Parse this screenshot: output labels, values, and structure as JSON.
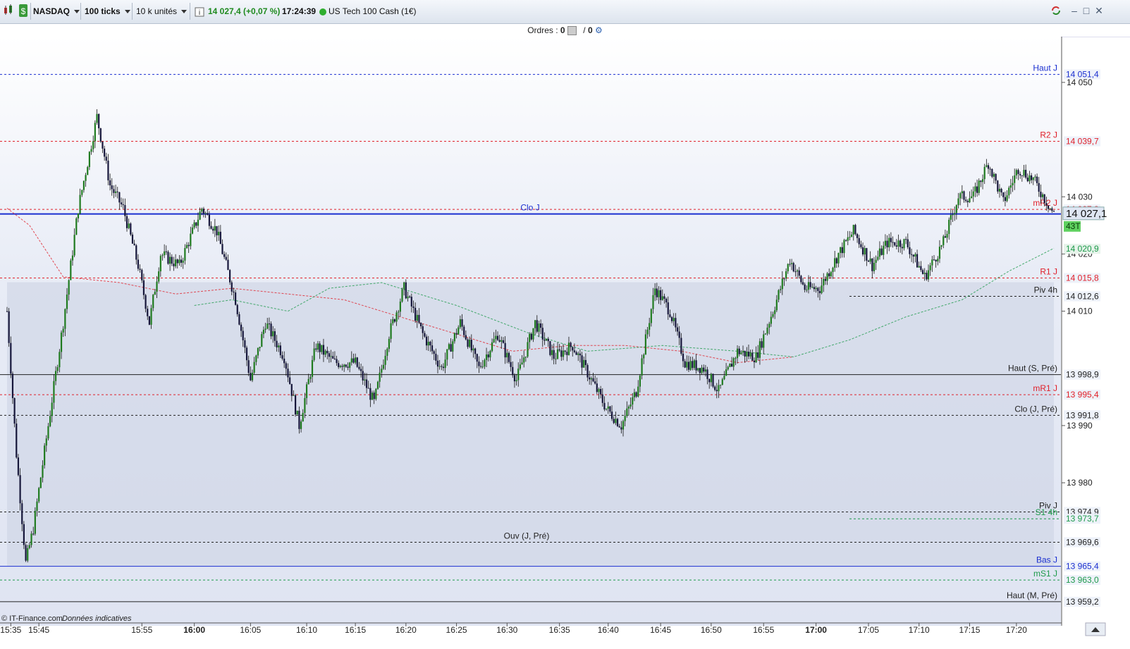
{
  "toolbar": {
    "market": "NASDAQ",
    "ticks": "100 ticks",
    "units": "10 k unités",
    "price_change": "14 027,4 (+0,07 %)",
    "time": "17:24:39",
    "instrument": "US Tech 100 Cash (1€)"
  },
  "orders": {
    "label": "Ordres :",
    "count_a": "0",
    "sep": "/",
    "count_b": "0"
  },
  "footer": {
    "source": "© IT-Finance.com",
    "disclaimer": "Données indicatives"
  },
  "colors": {
    "up": "#1f7a1f",
    "down": "#16163a",
    "red_line": "#e0202a",
    "blue_line": "#1a2fd0",
    "green_line": "#1d9a4a"
  },
  "chart_data": {
    "type": "candlestick",
    "ylim": [
      13955,
      14058
    ],
    "yticks": [
      {
        "value": 14050,
        "label": "14 050"
      },
      {
        "value": 14030,
        "label": "14 030"
      },
      {
        "value": 14020,
        "label": "14 020"
      },
      {
        "value": 14010,
        "label": "14 010"
      },
      {
        "value": 13990,
        "label": "13 990"
      },
      {
        "value": 13980,
        "label": "13 980"
      }
    ],
    "xticks": [
      {
        "label": "15:35",
        "bold": false
      },
      {
        "label": "15:45",
        "bold": false
      },
      {
        "label": "15:55",
        "bold": false
      },
      {
        "label": "16:00",
        "bold": true
      },
      {
        "label": "16:05",
        "bold": false
      },
      {
        "label": "16:10",
        "bold": false
      },
      {
        "label": "16:15",
        "bold": false
      },
      {
        "label": "16:20",
        "bold": false
      },
      {
        "label": "16:25",
        "bold": false
      },
      {
        "label": "16:30",
        "bold": false
      },
      {
        "label": "16:35",
        "bold": false
      },
      {
        "label": "16:40",
        "bold": false
      },
      {
        "label": "16:45",
        "bold": false
      },
      {
        "label": "16:50",
        "bold": false
      },
      {
        "label": "16:55",
        "bold": false
      },
      {
        "label": "17:00",
        "bold": true
      },
      {
        "label": "17:05",
        "bold": false
      },
      {
        "label": "17:10",
        "bold": false
      },
      {
        "label": "17:15",
        "bold": false
      },
      {
        "label": "17:20",
        "bold": false
      }
    ],
    "xtick_index": [
      2,
      17,
      72,
      100,
      130,
      160,
      186,
      213,
      240,
      267,
      295,
      321,
      349,
      376,
      404,
      432,
      460,
      487,
      514,
      539
    ],
    "candle_count": 560,
    "price_path": [
      {
        "i": 0,
        "p": 14010
      },
      {
        "i": 5,
        "p": 13985
      },
      {
        "i": 10,
        "p": 13966
      },
      {
        "i": 14,
        "p": 13972
      },
      {
        "i": 22,
        "p": 13990
      },
      {
        "i": 30,
        "p": 14008
      },
      {
        "i": 38,
        "p": 14028
      },
      {
        "i": 48,
        "p": 14044
      },
      {
        "i": 55,
        "p": 14032
      },
      {
        "i": 62,
        "p": 14028
      },
      {
        "i": 70,
        "p": 14018
      },
      {
        "i": 76,
        "p": 14008
      },
      {
        "i": 82,
        "p": 14020
      },
      {
        "i": 92,
        "p": 14018
      },
      {
        "i": 104,
        "p": 14028
      },
      {
        "i": 112,
        "p": 14024
      },
      {
        "i": 122,
        "p": 14012
      },
      {
        "i": 130,
        "p": 13998
      },
      {
        "i": 138,
        "p": 14008
      },
      {
        "i": 148,
        "p": 14002
      },
      {
        "i": 156,
        "p": 13990
      },
      {
        "i": 165,
        "p": 14004
      },
      {
        "i": 175,
        "p": 14001
      },
      {
        "i": 186,
        "p": 14001
      },
      {
        "i": 196,
        "p": 13994
      },
      {
        "i": 204,
        "p": 14006
      },
      {
        "i": 212,
        "p": 14014
      },
      {
        "i": 222,
        "p": 14006
      },
      {
        "i": 232,
        "p": 14000
      },
      {
        "i": 242,
        "p": 14008
      },
      {
        "i": 252,
        "p": 14000
      },
      {
        "i": 262,
        "p": 14006
      },
      {
        "i": 272,
        "p": 13998
      },
      {
        "i": 282,
        "p": 14008
      },
      {
        "i": 292,
        "p": 14002
      },
      {
        "i": 302,
        "p": 14004
      },
      {
        "i": 312,
        "p": 13998
      },
      {
        "i": 320,
        "p": 13993
      },
      {
        "i": 328,
        "p": 13990
      },
      {
        "i": 336,
        "p": 13996
      },
      {
        "i": 346,
        "p": 14014
      },
      {
        "i": 354,
        "p": 14010
      },
      {
        "i": 362,
        "p": 14001
      },
      {
        "i": 372,
        "p": 14000
      },
      {
        "i": 380,
        "p": 13996
      },
      {
        "i": 390,
        "p": 14003
      },
      {
        "i": 400,
        "p": 14002
      },
      {
        "i": 410,
        "p": 14011
      },
      {
        "i": 418,
        "p": 14019
      },
      {
        "i": 426,
        "p": 14014
      },
      {
        "i": 434,
        "p": 14014
      },
      {
        "i": 444,
        "p": 14020
      },
      {
        "i": 452,
        "p": 14024
      },
      {
        "i": 462,
        "p": 14018
      },
      {
        "i": 470,
        "p": 14022
      },
      {
        "i": 480,
        "p": 14022
      },
      {
        "i": 490,
        "p": 14016
      },
      {
        "i": 500,
        "p": 14022
      },
      {
        "i": 508,
        "p": 14030
      },
      {
        "i": 516,
        "p": 14030
      },
      {
        "i": 524,
        "p": 14036
      },
      {
        "i": 532,
        "p": 14029
      },
      {
        "i": 540,
        "p": 14035
      },
      {
        "i": 548,
        "p": 14033
      },
      {
        "i": 559,
        "p": 14027
      }
    ],
    "ma_red": [
      {
        "i": 0,
        "p": 14028
      },
      {
        "i": 12,
        "p": 14025
      },
      {
        "i": 30,
        "p": 14016
      },
      {
        "i": 60,
        "p": 14015
      },
      {
        "i": 90,
        "p": 14013
      },
      {
        "i": 120,
        "p": 14014
      },
      {
        "i": 150,
        "p": 14013
      },
      {
        "i": 180,
        "p": 14012
      },
      {
        "i": 210,
        "p": 14009
      },
      {
        "i": 240,
        "p": 14006
      },
      {
        "i": 270,
        "p": 14003
      },
      {
        "i": 300,
        "p": 14004
      },
      {
        "i": 330,
        "p": 14004
      },
      {
        "i": 360,
        "p": 14003
      },
      {
        "i": 390,
        "p": 14001
      },
      {
        "i": 420,
        "p": 14002
      }
    ],
    "ma_green": [
      {
        "i": 100,
        "p": 14011
      },
      {
        "i": 120,
        "p": 14012
      },
      {
        "i": 150,
        "p": 14010
      },
      {
        "i": 172,
        "p": 14014
      },
      {
        "i": 200,
        "p": 14015
      },
      {
        "i": 240,
        "p": 14011
      },
      {
        "i": 280,
        "p": 14006
      },
      {
        "i": 310,
        "p": 14003
      },
      {
        "i": 350,
        "p": 14004
      },
      {
        "i": 390,
        "p": 14003
      },
      {
        "i": 420,
        "p": 14002
      },
      {
        "i": 450,
        "p": 14005
      },
      {
        "i": 480,
        "p": 14009
      },
      {
        "i": 510,
        "p": 14012
      },
      {
        "i": 535,
        "p": 14017
      },
      {
        "i": 559,
        "p": 14021
      }
    ],
    "levels": [
      {
        "name": "Haut J",
        "value": 14051.4,
        "label": "14 051,4",
        "color": "#1a2fd0",
        "style": "dashed",
        "label_color": "#1a2fd0"
      },
      {
        "name": "R2 J",
        "value": 14039.7,
        "label": "14 039,7",
        "color": "#e0202a",
        "style": "dashed",
        "label_color": "#e0202a"
      },
      {
        "name": "mR2 J",
        "value": 14027.8,
        "label": "14 027,8",
        "color": "#e0202a",
        "style": "dashed",
        "label_color": "#e0202a"
      },
      {
        "name": "Clo J",
        "value": 14027.0,
        "label": "",
        "color": "#1a2fd0",
        "style": "solid",
        "label_color": "#1a2fd0"
      },
      {
        "name": "R1 J",
        "value": 14015.8,
        "label": "14 015,8",
        "color": "#e0202a",
        "style": "dashed",
        "label_color": "#e0202a"
      },
      {
        "name": "Piv 4h",
        "value": 14012.6,
        "label": "14 012,6",
        "color": "#222",
        "style": "dashed",
        "label_color": "#222"
      },
      {
        "name": "Haut (S, Pré)",
        "value": 13998.9,
        "label": "13 998,9",
        "color": "#222",
        "style": "solid",
        "label_color": "#222"
      },
      {
        "name": "mR1 J",
        "value": 13995.4,
        "label": "13 995,4",
        "color": "#e0202a",
        "style": "dashed",
        "label_color": "#e0202a"
      },
      {
        "name": "Clo (J, Pré)",
        "value": 13991.8,
        "label": "13 991,8",
        "color": "#222",
        "style": "dashed",
        "label_color": "#222"
      },
      {
        "name": "Piv J",
        "value": 13974.9,
        "label": "13 974,9",
        "color": "#222",
        "style": "dashed",
        "label_color": "#222"
      },
      {
        "name": "S1 4h",
        "value": 13973.7,
        "label": "13 973,7",
        "color": "#1d9a4a",
        "style": "dashed",
        "label_color": "#1d9a4a"
      },
      {
        "name": "Ouv (J, Pré)",
        "value": 13969.6,
        "label": "13 969,6",
        "color": "#222",
        "style": "dashed",
        "label_color": "#222"
      },
      {
        "name": "Bas J",
        "value": 13965.4,
        "label": "13 965,4",
        "color": "#1a2fd0",
        "style": "solid",
        "label_color": "#1a2fd0"
      },
      {
        "name": "mS1 J",
        "value": 13963.0,
        "label": "13 963,0",
        "color": "#1d9a4a",
        "style": "dashed",
        "label_color": "#1d9a4a"
      },
      {
        "name": "Haut (M, Pré)",
        "value": 13959.2,
        "label": "13 959,2",
        "color": "#222",
        "style": "solid",
        "label_color": "#222"
      }
    ],
    "current_price_label": "14 027,1",
    "tick_count_badge": "43T",
    "ma_label": "14 020,9"
  }
}
